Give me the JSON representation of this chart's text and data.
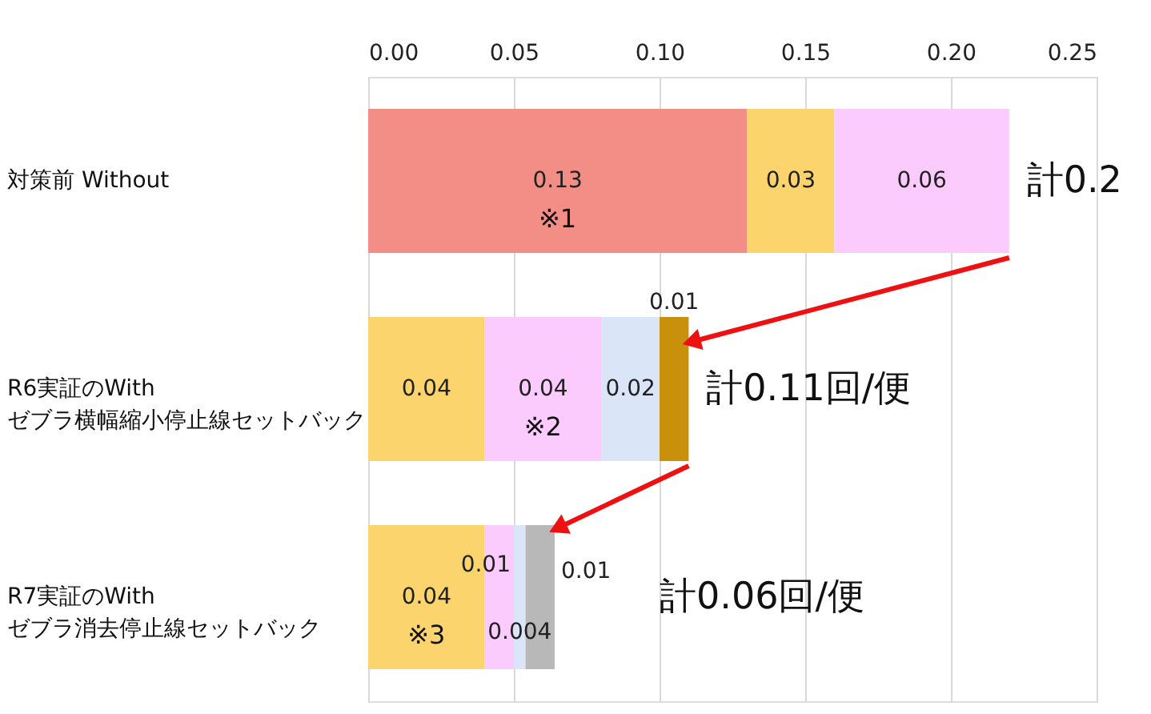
{
  "chart_data": {
    "type": "bar",
    "orientation": "horizontal",
    "stacked": true,
    "categories": [
      "対策前 Without",
      "R6実証のWith\nゼブラ横幅縮小停止線セットバック",
      "R7実証のWith\nゼブラ消去停止線セットバック"
    ],
    "series": [
      {
        "color": "#f28e86",
        "values": [
          0.13,
          null,
          null
        ]
      },
      {
        "color": "#fbd46d",
        "values": [
          0.03,
          0.04,
          0.04
        ]
      },
      {
        "color": "#fccbfd",
        "values": [
          0.06,
          0.04,
          0.01
        ]
      },
      {
        "color": "#dae6f8",
        "values": [
          null,
          0.02,
          0.004
        ]
      },
      {
        "color": "#c9900c",
        "values": [
          null,
          0.01,
          null
        ]
      },
      {
        "color": "#b8b8b8",
        "values": [
          null,
          null,
          0.01
        ]
      }
    ],
    "xlim": [
      0,
      0.25
    ],
    "xticks": [
      {
        "value": 0,
        "label": "0.00"
      },
      {
        "value": 0.05,
        "label": "0.05"
      },
      {
        "value": 0.1,
        "label": "0.10"
      },
      {
        "value": 0.15,
        "label": "0.15"
      },
      {
        "value": 0.2,
        "label": "0.20"
      },
      {
        "value": 0.25,
        "label": "0.25"
      }
    ],
    "grid": "x",
    "legend": false,
    "data_labels": true,
    "totals": [
      "計0.2",
      "計0.11回/便",
      "計0.06回/便"
    ],
    "annotations": [
      "※1",
      "※2",
      "※3"
    ]
  }
}
